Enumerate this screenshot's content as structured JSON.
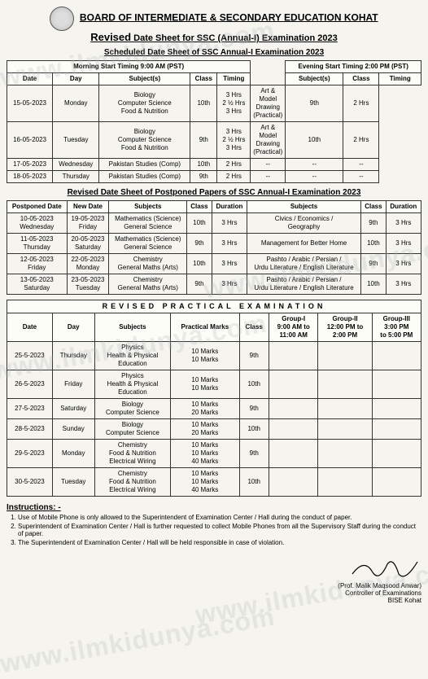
{
  "header": {
    "board": "BOARD OF INTERMEDIATE & SECONDARY EDUCATION KOHAT",
    "revised": "Revised",
    "subtitle": "Date Sheet for SSC (Annual-I) Examination 2023"
  },
  "watermark": "www.ilmkidunya.com",
  "section1": {
    "title": "Scheduled Date Sheet of SSC Annual-I Examination 2023",
    "morning_head": "Morning Start Timing 9:00 AM (PST)",
    "evening_head": "Evening Start Timing 2:00 PM (PST)",
    "cols_m": [
      "Date",
      "Day",
      "Subject(s)",
      "Class",
      "Timing"
    ],
    "cols_e": [
      "Subject(s)",
      "Class",
      "Timing"
    ],
    "rows": [
      {
        "date": "15-05-2023",
        "day": "Monday",
        "msub": "Biology\nComputer Science\nFood & Nutrition",
        "mclass": "10th",
        "mtime": "3 Hrs\n2 ½ Hrs\n3 Hrs",
        "esub": "Art & Model Drawing\n(Practical)",
        "eclass": "9th",
        "etime": "2 Hrs"
      },
      {
        "date": "16-05-2023",
        "day": "Tuesday",
        "msub": "Biology\nComputer Science\nFood & Nutrition",
        "mclass": "9th",
        "mtime": "3 Hrs\n2 ½ Hrs\n3 Hrs",
        "esub": "Art & Model Drawing\n(Practical)",
        "eclass": "10th",
        "etime": "2 Hrs"
      },
      {
        "date": "17-05-2023",
        "day": "Wednesday",
        "msub": "Pakistan Studies (Comp)",
        "mclass": "10th",
        "mtime": "2 Hrs",
        "esub": "--",
        "eclass": "--",
        "etime": "--"
      },
      {
        "date": "18-05-2023",
        "day": "Thursday",
        "msub": "Pakistan Studies (Comp)",
        "mclass": "9th",
        "mtime": "2 Hrs",
        "esub": "--",
        "eclass": "--",
        "etime": "--"
      }
    ]
  },
  "section2": {
    "title": "Revised Date Sheet of Postponed Papers of SSC Annual-I Examination 2023",
    "cols": [
      "Postponed Date",
      "New Date",
      "Subjects",
      "Class",
      "Duration",
      "Subjects",
      "Class",
      "Duration"
    ],
    "rows": [
      {
        "pdate": "10-05-2023\nWednesday",
        "ndate": "19-05-2023\nFriday",
        "s1": "Mathematics (Science)\nGeneral Science",
        "c1": "10th",
        "d1": "3 Hrs",
        "s2": "Civics / Economics /\nGeography",
        "c2": "9th",
        "d2": "3 Hrs"
      },
      {
        "pdate": "11-05-2023\nThursday",
        "ndate": "20-05-2023\nSaturday",
        "s1": "Mathematics (Science)\nGeneral Science",
        "c1": "9th",
        "d1": "3 Hrs",
        "s2": "Management for Better Home",
        "c2": "10th",
        "d2": "3 Hrs"
      },
      {
        "pdate": "12-05-2023\nFriday",
        "ndate": "22-05-2023\nMonday",
        "s1": "Chemistry\nGeneral Maths (Arts)",
        "c1": "10th",
        "d1": "3 Hrs",
        "s2": "Pashto / Arabic / Persian /\nUrdu Literature / English Literature",
        "c2": "9th",
        "d2": "3 Hrs"
      },
      {
        "pdate": "13-05-2023\nSaturday",
        "ndate": "23-05-2023\nTuesday",
        "s1": "Chemistry\nGeneral Maths (Arts)",
        "c1": "9th",
        "d1": "3 Hrs",
        "s2": "Pashto / Arabic / Persian /\nUrdu Literature / English Literature",
        "c2": "10th",
        "d2": "3 Hrs"
      }
    ]
  },
  "section3": {
    "title": "REVISED PRACTICAL EXAMINATION",
    "cols": [
      "Date",
      "Day",
      "Subjects",
      "Practical Marks",
      "Class",
      "Group-I\n9:00 AM to\n11:00 AM",
      "Group-II\n12:00 PM to\n2:00 PM",
      "Group-III\n3:00 PM\nto 5:00 PM"
    ],
    "rows": [
      {
        "date": "25-5-2023",
        "day": "Thursday",
        "sub": "Physics\nHealth & Physical\nEducation",
        "marks": "10 Marks\n10 Marks",
        "class": "9th"
      },
      {
        "date": "26-5-2023",
        "day": "Friday",
        "sub": "Physics\nHealth & Physical\nEducation",
        "marks": "10 Marks\n10 Marks",
        "class": "10th"
      },
      {
        "date": "27-5-2023",
        "day": "Saturday",
        "sub": "Biology\nComputer Science",
        "marks": "10 Marks\n20 Marks",
        "class": "9th"
      },
      {
        "date": "28-5-2023",
        "day": "Sunday",
        "sub": "Biology\nComputer Science",
        "marks": "10 Marks\n20 Marks",
        "class": "10th"
      },
      {
        "date": "29-5-2023",
        "day": "Monday",
        "sub": "Chemistry\nFood & Nutrition\nElectrical Wiring",
        "marks": "10 Marks\n10 Marks\n40 Marks",
        "class": "9th"
      },
      {
        "date": "30-5-2023",
        "day": "Tuesday",
        "sub": "Chemistry\nFood & Nutrition\nElectrical Wiring",
        "marks": "10 Marks\n10 Marks\n40 Marks",
        "class": "10th"
      }
    ]
  },
  "instructions": {
    "title": "Instructions: -",
    "items": [
      "Use of Mobile Phone is only allowed to the Superintendent of Examination Center / Hall during the conduct of paper.",
      "Superintendent of Examination Center / Hall is further requested to collect Mobile Phones from all the Supervisory Staff during the conduct of paper.",
      "The Superintendent of Examination Center / Hall will be held responsible in case of violation."
    ]
  },
  "signoff": {
    "name": "(Prof. Malik Maqsood Anwar)",
    "role": "Controller of Examinations",
    "org": "BISE Kohat"
  }
}
